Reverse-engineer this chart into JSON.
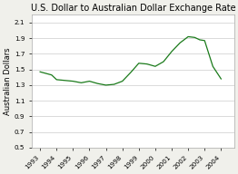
{
  "title": "U.S. Dollar to Australian Dollar Exchange Rate",
  "ylabel": "Australian Dollars",
  "x_points": [
    1993,
    1993.7,
    1994,
    1994.5,
    1995,
    1995.5,
    1996,
    1996.5,
    1997,
    1997.5,
    1998,
    1998.5,
    1999,
    1999.5,
    2000,
    2000.5,
    2001,
    2001.5,
    2002,
    2002.4,
    2002.7,
    2003,
    2003.5,
    2004
  ],
  "y_points": [
    1.47,
    1.43,
    1.37,
    1.36,
    1.35,
    1.33,
    1.35,
    1.32,
    1.3,
    1.31,
    1.35,
    1.46,
    1.58,
    1.57,
    1.54,
    1.6,
    1.73,
    1.84,
    1.92,
    1.91,
    1.88,
    1.87,
    1.54,
    1.38
  ],
  "line_color": "#1a7a1a",
  "background_color": "#f0f0eb",
  "plot_bg_color": "#ffffff",
  "ylim": [
    0.5,
    2.2
  ],
  "xlim": [
    1992.5,
    2004.8
  ],
  "yticks": [
    0.5,
    0.7,
    0.9,
    1.1,
    1.3,
    1.5,
    1.7,
    1.9,
    2.1
  ],
  "xticks": [
    1993,
    1994,
    1995,
    1996,
    1997,
    1998,
    1999,
    2000,
    2001,
    2002,
    2003,
    2004
  ],
  "title_fontsize": 7.0,
  "label_fontsize": 6.0,
  "tick_fontsize": 5.2
}
